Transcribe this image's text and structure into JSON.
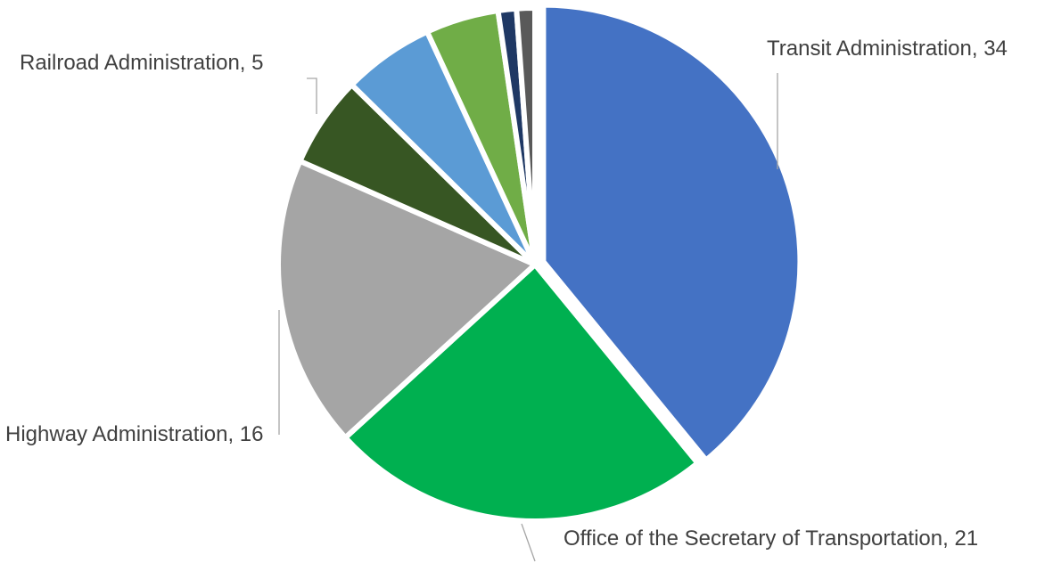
{
  "chart_data": {
    "type": "pie",
    "title": "",
    "start_angle_deg": 0,
    "direction": "clockwise",
    "slices": [
      {
        "label": "Transit Administration",
        "value": 34,
        "color": "#4472c4",
        "labeled": true
      },
      {
        "label": "Office of the Secretary of Transportation",
        "value": 21,
        "color": "#00b050",
        "labeled": true
      },
      {
        "label": "Highway Administration",
        "value": 16,
        "color": "#a5a5a5",
        "labeled": true
      },
      {
        "label": "Railroad Administration",
        "value": 5,
        "color": "#375623",
        "labeled": true
      },
      {
        "label": "",
        "value": 5,
        "color": "#5b9bd5",
        "labeled": false
      },
      {
        "label": "",
        "value": 4,
        "color": "#70ad47",
        "labeled": false
      },
      {
        "label": "",
        "value": 1,
        "color": "#1f3864",
        "labeled": false
      },
      {
        "label": "",
        "value": 1,
        "color": "#595959",
        "labeled": false
      }
    ],
    "legend": "none",
    "data_labels": "outside-with-leader-lines"
  }
}
